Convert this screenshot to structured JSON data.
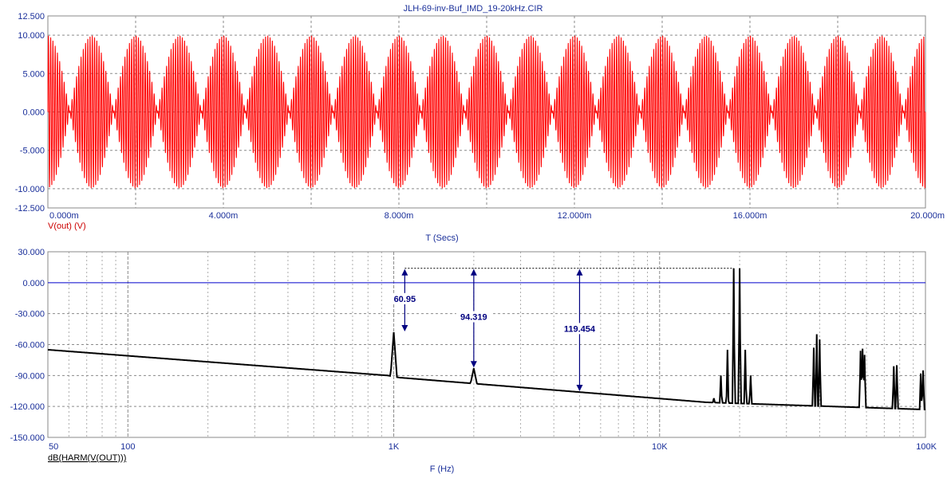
{
  "title": "JLH-69-inv-Buf_IMD_19-20kHz.CIR",
  "colors": {
    "title": "#1a2f9a",
    "axis_text": "#1a2f9a",
    "top_trace": "#ff0000",
    "top_label": "#cc0000",
    "bottom_trace": "#000000",
    "zero_line": "#0000cc",
    "annotation": "#000080",
    "grid": "#8a8a8a"
  },
  "chart_data": [
    {
      "type": "line",
      "trace_label": "V(out) (V)",
      "xlabel": "T (Secs)",
      "xlim": [
        0,
        0.02
      ],
      "ylim": [
        -12.5,
        12.5
      ],
      "x_ticks": [
        {
          "value": 0,
          "label": "0.000m"
        },
        {
          "value": 0.004,
          "label": "4.000m"
        },
        {
          "value": 0.008,
          "label": "8.000m"
        },
        {
          "value": 0.012,
          "label": "12.000m"
        },
        {
          "value": 0.016,
          "label": "16.000m"
        },
        {
          "value": 0.02,
          "label": "20.000m"
        }
      ],
      "y_ticks": [
        {
          "value": 12.5,
          "label": "12.500"
        },
        {
          "value": 10,
          "label": "10.000"
        },
        {
          "value": 5,
          "label": "5.000"
        },
        {
          "value": 0,
          "label": "0.000"
        },
        {
          "value": -5,
          "label": "-5.000"
        },
        {
          "value": -10,
          "label": "-10.000"
        },
        {
          "value": -12.5,
          "label": "-12.500"
        }
      ],
      "signal": {
        "tone1_hz": 19000,
        "tone2_hz": 20000,
        "amplitude_each": 5
      },
      "grid": true
    },
    {
      "type": "line",
      "trace_label": "dB(HARM(V(OUT)))",
      "xlabel": "F (Hz)",
      "x_scale": "log",
      "xlim": [
        50,
        100000
      ],
      "ylim": [
        -150,
        30
      ],
      "x_ticks": [
        {
          "value": 50,
          "label": "50"
        },
        {
          "value": 100,
          "label": "100"
        },
        {
          "value": 1000,
          "label": "1K"
        },
        {
          "value": 10000,
          "label": "10K"
        },
        {
          "value": 100000,
          "label": "100K"
        }
      ],
      "y_ticks": [
        {
          "value": 30,
          "label": "30.000"
        },
        {
          "value": 0,
          "label": "0.000"
        },
        {
          "value": -30,
          "label": "-30.000"
        },
        {
          "value": -60,
          "label": "-60.000"
        },
        {
          "value": -90,
          "label": "-90.000"
        },
        {
          "value": -120,
          "label": "-120.000"
        },
        {
          "value": -150,
          "label": "-150.000"
        }
      ],
      "floor": [
        {
          "f": 50,
          "db": -65
        },
        {
          "f": 950,
          "db": -90
        },
        {
          "f": 1050,
          "db": -92
        },
        {
          "f": 15000,
          "db": -116
        },
        {
          "f": 100000,
          "db": -123
        }
      ],
      "peaks": [
        {
          "f": 1000,
          "db": -48
        },
        {
          "f": 2000,
          "db": -83
        },
        {
          "f": 3000,
          "db": -103
        },
        {
          "f": 19000,
          "db": 14
        },
        {
          "f": 20000,
          "db": 14
        },
        {
          "f": 18000,
          "db": -65
        },
        {
          "f": 21000,
          "db": -65
        },
        {
          "f": 17000,
          "db": -90
        },
        {
          "f": 22000,
          "db": -90
        },
        {
          "f": 16000,
          "db": -112
        },
        {
          "f": 38000,
          "db": -63
        },
        {
          "f": 39000,
          "db": -50
        },
        {
          "f": 40000,
          "db": -55
        },
        {
          "f": 57000,
          "db": -66
        },
        {
          "f": 58000,
          "db": -64
        },
        {
          "f": 59000,
          "db": -70
        },
        {
          "f": 76000,
          "db": -81
        },
        {
          "f": 78000,
          "db": -80
        },
        {
          "f": 96000,
          "db": -88
        },
        {
          "f": 98000,
          "db": -85
        }
      ],
      "reference_db": 14,
      "annotations": [
        {
          "f": 1100,
          "to_db": -48,
          "label": "60.95"
        },
        {
          "f": 2000,
          "to_db": -83,
          "label": "94.319"
        },
        {
          "f": 5000,
          "to_db": -106,
          "label": "119.454"
        }
      ],
      "zero_line": 0,
      "grid": true
    }
  ]
}
